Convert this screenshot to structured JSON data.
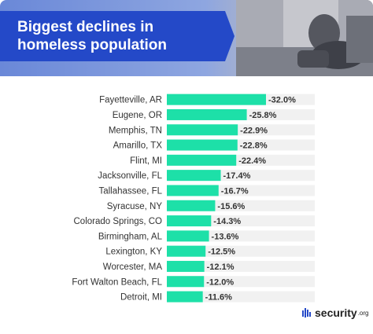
{
  "header": {
    "title": "Biggest declines in homeless population"
  },
  "chart_data": {
    "type": "bar",
    "orientation": "horizontal",
    "title": "Biggest declines in homeless population",
    "categories": [
      "Fayetteville, AR",
      "Eugene, OR",
      "Memphis, TN",
      "Amarillo, TX",
      "Flint, MI",
      "Jacksonville, FL",
      "Tallahassee, FL",
      "Syracuse, NY",
      "Colorado Springs, CO",
      "Birmingham, AL",
      "Lexington, KY",
      "Worcester, MA",
      "Fort Walton Beach, FL",
      "Detroit, MI"
    ],
    "values": [
      -32.0,
      -25.8,
      -22.9,
      -22.8,
      -22.4,
      -17.4,
      -16.7,
      -15.6,
      -14.3,
      -13.6,
      -12.5,
      -12.1,
      -12.0,
      -11.6
    ],
    "value_labels": [
      "-32.0%",
      "-25.8%",
      "-22.9%",
      "-22.8%",
      "-22.4%",
      "-17.4%",
      "-16.7%",
      "-15.6%",
      "-14.3%",
      "-13.6%",
      "-12.5%",
      "-12.1%",
      "-12.0%",
      "-11.6%"
    ],
    "xlim": [
      0,
      -32.0
    ],
    "bar_color": "#1de0a8",
    "track_color": "#f1f1f1",
    "label_color": "#333333",
    "grid": false,
    "legend": "none"
  },
  "footer": {
    "brand": "security",
    "brand_tld": ".org",
    "logo_icon": "shield-bars-icon",
    "logo_color": "#2449c8"
  },
  "colors": {
    "header_blue": "#2449c8",
    "bar": "#1de0a8"
  }
}
